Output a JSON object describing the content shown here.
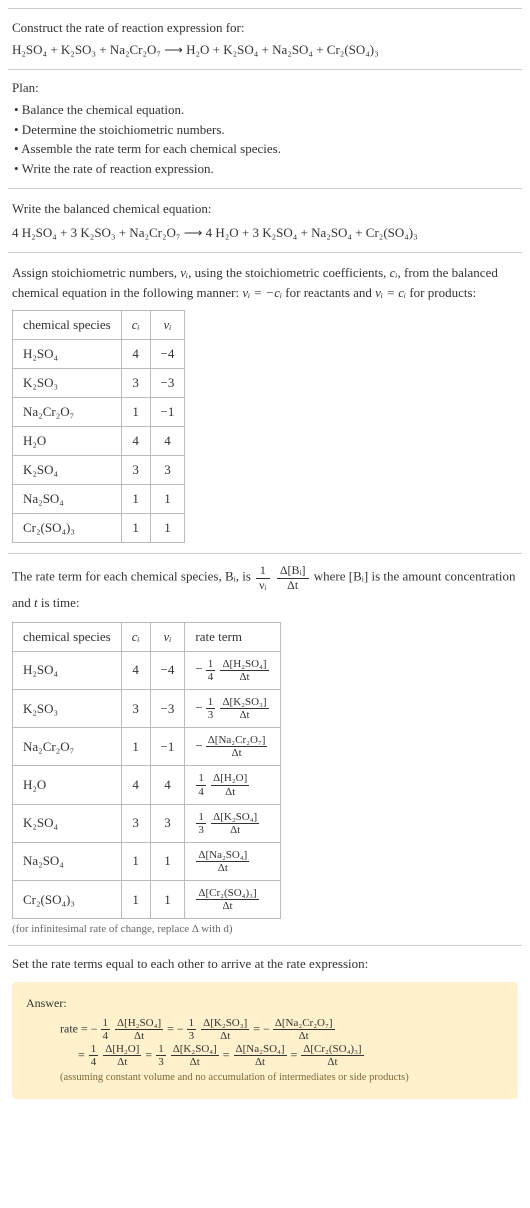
{
  "intro": {
    "lead": "Construct the rate of reaction expression for:",
    "equation": "H₂SO₄ + K₂SO₃ + Na₂Cr₂O₇ ⟶ H₂O + K₂SO₄ + Na₂SO₄ + Cr₂(SO₄)₃"
  },
  "plan": {
    "title": "Plan:",
    "items": [
      "• Balance the chemical equation.",
      "• Determine the stoichiometric numbers.",
      "• Assemble the rate term for each chemical species.",
      "• Write the rate of reaction expression."
    ]
  },
  "balanced": {
    "lead": "Write the balanced chemical equation:",
    "equation": "4 H₂SO₄ + 3 K₂SO₃ + Na₂Cr₂O₇ ⟶ 4 H₂O + 3 K₂SO₄ + Na₂SO₄ + Cr₂(SO₄)₃"
  },
  "stoich": {
    "text_a": "Assign stoichiometric numbers, ",
    "nu_i": "νᵢ",
    "text_b": ", using the stoichiometric coefficients, ",
    "c_i": "cᵢ",
    "text_c": ", from the balanced chemical equation in the following manner: ",
    "rel1": "νᵢ = −cᵢ",
    "text_d": " for reactants and ",
    "rel2": "νᵢ = cᵢ",
    "text_e": " for products:",
    "headers": [
      "chemical species",
      "cᵢ",
      "νᵢ"
    ],
    "rows": [
      [
        "H₂SO₄",
        "4",
        "−4"
      ],
      [
        "K₂SO₃",
        "3",
        "−3"
      ],
      [
        "Na₂Cr₂O₇",
        "1",
        "−1"
      ],
      [
        "H₂O",
        "4",
        "4"
      ],
      [
        "K₂SO₄",
        "3",
        "3"
      ],
      [
        "Na₂SO₄",
        "1",
        "1"
      ],
      [
        "Cr₂(SO₄)₃",
        "1",
        "1"
      ]
    ]
  },
  "rate": {
    "text_a": "The rate term for each chemical species, Bᵢ, is ",
    "frac1_num": "1",
    "frac1_den": "νᵢ",
    "frac2_num": "Δ[Bᵢ]",
    "frac2_den": "Δt",
    "text_b": " where [Bᵢ] is the amount concentration and ",
    "t": "t",
    "text_c": " is time:",
    "headers": [
      "chemical species",
      "cᵢ",
      "νᵢ",
      "rate term"
    ],
    "rows": [
      {
        "sp": "H₂SO₄",
        "c": "4",
        "nu": "−4",
        "sign": "−",
        "kn": "1",
        "kd": "4",
        "dn": "Δ[H₂SO₄]",
        "dd": "Δt"
      },
      {
        "sp": "K₂SO₃",
        "c": "3",
        "nu": "−3",
        "sign": "−",
        "kn": "1",
        "kd": "3",
        "dn": "Δ[K₂SO₃]",
        "dd": "Δt"
      },
      {
        "sp": "Na₂Cr₂O₇",
        "c": "1",
        "nu": "−1",
        "sign": "−",
        "kn": "",
        "kd": "",
        "dn": "Δ[Na₂Cr₂O₇]",
        "dd": "Δt"
      },
      {
        "sp": "H₂O",
        "c": "4",
        "nu": "4",
        "sign": "",
        "kn": "1",
        "kd": "4",
        "dn": "Δ[H₂O]",
        "dd": "Δt"
      },
      {
        "sp": "K₂SO₄",
        "c": "3",
        "nu": "3",
        "sign": "",
        "kn": "1",
        "kd": "3",
        "dn": "Δ[K₂SO₄]",
        "dd": "Δt"
      },
      {
        "sp": "Na₂SO₄",
        "c": "1",
        "nu": "1",
        "sign": "",
        "kn": "",
        "kd": "",
        "dn": "Δ[Na₂SO₄]",
        "dd": "Δt"
      },
      {
        "sp": "Cr₂(SO₄)₃",
        "c": "1",
        "nu": "1",
        "sign": "",
        "kn": "",
        "kd": "",
        "dn": "Δ[Cr₂(SO₄)₃]",
        "dd": "Δt"
      }
    ],
    "note": "(for infinitesimal rate of change, replace Δ with d)"
  },
  "final": {
    "lead": "Set the rate terms equal to each other to arrive at the rate expression:"
  },
  "answer": {
    "label": "Answer:",
    "rate_word": "rate = ",
    "eq": " = ",
    "terms1": [
      {
        "sign": "−",
        "kn": "1",
        "kd": "4",
        "dn": "Δ[H₂SO₄]",
        "dd": "Δt"
      },
      {
        "sign": "−",
        "kn": "1",
        "kd": "3",
        "dn": "Δ[K₂SO₃]",
        "dd": "Δt"
      },
      {
        "sign": "−",
        "kn": "",
        "kd": "",
        "dn": "Δ[Na₂Cr₂O₇]",
        "dd": "Δt"
      }
    ],
    "terms2": [
      {
        "sign": "",
        "kn": "1",
        "kd": "4",
        "dn": "Δ[H₂O]",
        "dd": "Δt"
      },
      {
        "sign": "",
        "kn": "1",
        "kd": "3",
        "dn": "Δ[K₂SO₄]",
        "dd": "Δt"
      },
      {
        "sign": "",
        "kn": "",
        "kd": "",
        "dn": "Δ[Na₂SO₄]",
        "dd": "Δt"
      },
      {
        "sign": "",
        "kn": "",
        "kd": "",
        "dn": "Δ[Cr₂(SO₄)₃]",
        "dd": "Δt"
      }
    ],
    "note": "(assuming constant volume and no accumulation of intermediates or side products)"
  },
  "colors": {
    "border": "#bbb",
    "answer_bg": "#fff1cc"
  }
}
